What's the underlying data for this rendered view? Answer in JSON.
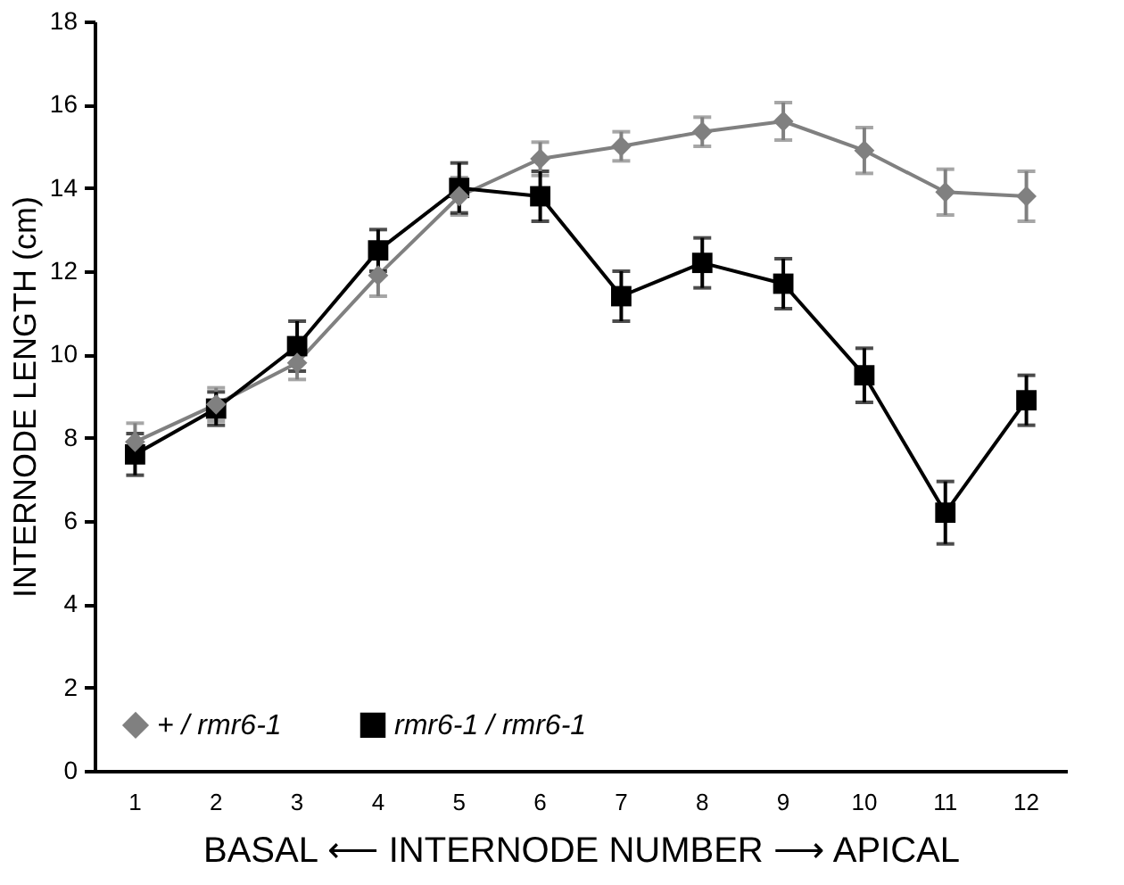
{
  "chart_data": {
    "type": "line",
    "xlabel": "BASAL ⟵ INTERNODE NUMBER ⟶ APICAL",
    "ylabel": "INTERNODE LENGTH (cm)",
    "categories": [
      "1",
      "2",
      "3",
      "4",
      "5",
      "6",
      "7",
      "8",
      "9",
      "10",
      "11",
      "12"
    ],
    "series": [
      {
        "name": "+ / rmr6-1",
        "color": "#808080",
        "marker": "diamond",
        "values": [
          7.9,
          8.8,
          9.8,
          11.9,
          13.8,
          14.7,
          15.0,
          15.35,
          15.6,
          14.9,
          13.9,
          13.8
        ],
        "errors": [
          0.45,
          0.4,
          0.4,
          0.5,
          0.45,
          0.4,
          0.35,
          0.35,
          0.45,
          0.55,
          0.55,
          0.6
        ]
      },
      {
        "name": "rmr6-1 / rmr6-1",
        "color": "#000000",
        "marker": "square",
        "values": [
          7.6,
          8.7,
          10.2,
          12.5,
          14.0,
          13.8,
          11.4,
          12.2,
          11.7,
          9.5,
          6.2,
          8.9
        ],
        "errors": [
          0.5,
          0.4,
          0.6,
          0.5,
          0.6,
          0.6,
          0.6,
          0.6,
          0.6,
          0.65,
          0.75,
          0.6
        ]
      }
    ],
    "ylim": [
      0,
      18
    ],
    "yticks": [
      0,
      2,
      4,
      6,
      8,
      10,
      12,
      14,
      16,
      18
    ],
    "grid": false,
    "legend": "bottom left",
    "line_style": "solid"
  }
}
